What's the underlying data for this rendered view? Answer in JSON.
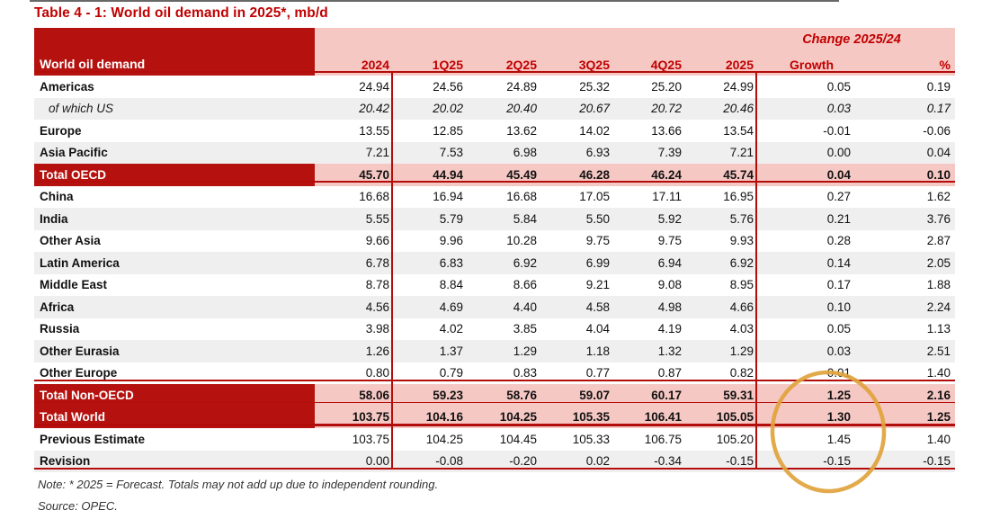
{
  "title": "Table 4 - 1: World oil demand in 2025*, mb/d",
  "table": {
    "first_col_header": "World oil demand",
    "change_header": "Change 2025/24",
    "columns": [
      "2024",
      "1Q25",
      "2Q25",
      "3Q25",
      "4Q25",
      "2025",
      "Growth",
      "%"
    ],
    "rows": [
      {
        "label": "Americas",
        "style": "normal",
        "shaded": false,
        "values": [
          "24.94",
          "24.56",
          "24.89",
          "25.32",
          "25.20",
          "24.99",
          "0.05",
          "0.19"
        ]
      },
      {
        "label": "of which US",
        "style": "subitem",
        "shaded": true,
        "values": [
          "20.42",
          "20.02",
          "20.40",
          "20.67",
          "20.72",
          "20.46",
          "0.03",
          "0.17"
        ]
      },
      {
        "label": "Europe",
        "style": "normal",
        "shaded": false,
        "values": [
          "13.55",
          "12.85",
          "13.62",
          "14.02",
          "13.66",
          "13.54",
          "-0.01",
          "-0.06"
        ]
      },
      {
        "label": "Asia Pacific",
        "style": "normal",
        "shaded": true,
        "values": [
          "7.21",
          "7.53",
          "6.98",
          "6.93",
          "7.39",
          "7.21",
          "0.00",
          "0.04"
        ]
      },
      {
        "label": "Total OECD",
        "style": "total",
        "shaded": false,
        "values": [
          "45.70",
          "44.94",
          "45.49",
          "46.28",
          "46.24",
          "45.74",
          "0.04",
          "0.10"
        ]
      },
      {
        "label": "China",
        "style": "normal",
        "shaded": false,
        "values": [
          "16.68",
          "16.94",
          "16.68",
          "17.05",
          "17.11",
          "16.95",
          "0.27",
          "1.62"
        ]
      },
      {
        "label": "India",
        "style": "normal",
        "shaded": true,
        "values": [
          "5.55",
          "5.79",
          "5.84",
          "5.50",
          "5.92",
          "5.76",
          "0.21",
          "3.76"
        ]
      },
      {
        "label": "Other Asia",
        "style": "normal",
        "shaded": false,
        "values": [
          "9.66",
          "9.96",
          "10.28",
          "9.75",
          "9.75",
          "9.93",
          "0.28",
          "2.87"
        ]
      },
      {
        "label": "Latin America",
        "style": "normal",
        "shaded": true,
        "values": [
          "6.78",
          "6.83",
          "6.92",
          "6.99",
          "6.94",
          "6.92",
          "0.14",
          "2.05"
        ]
      },
      {
        "label": "Middle East",
        "style": "normal",
        "shaded": false,
        "values": [
          "8.78",
          "8.84",
          "8.66",
          "9.21",
          "9.08",
          "8.95",
          "0.17",
          "1.88"
        ]
      },
      {
        "label": "Africa",
        "style": "normal",
        "shaded": true,
        "values": [
          "4.56",
          "4.69",
          "4.40",
          "4.58",
          "4.98",
          "4.66",
          "0.10",
          "2.24"
        ]
      },
      {
        "label": "Russia",
        "style": "normal",
        "shaded": false,
        "values": [
          "3.98",
          "4.02",
          "3.85",
          "4.04",
          "4.19",
          "4.03",
          "0.05",
          "1.13"
        ]
      },
      {
        "label": "Other Eurasia",
        "style": "normal",
        "shaded": true,
        "values": [
          "1.26",
          "1.37",
          "1.29",
          "1.18",
          "1.32",
          "1.29",
          "0.03",
          "2.51"
        ]
      },
      {
        "label": "Other Europe",
        "style": "normal",
        "shaded": false,
        "values": [
          "0.80",
          "0.79",
          "0.83",
          "0.77",
          "0.87",
          "0.82",
          "0.01",
          "1.40"
        ]
      },
      {
        "label": "Total Non-OECD",
        "style": "total",
        "shaded": false,
        "values": [
          "58.06",
          "59.23",
          "58.76",
          "59.07",
          "60.17",
          "59.31",
          "1.25",
          "2.16"
        ]
      },
      {
        "label": "Total World",
        "style": "total",
        "shaded": false,
        "values": [
          "103.75",
          "104.16",
          "104.25",
          "105.35",
          "106.41",
          "105.05",
          "1.30",
          "1.25"
        ]
      },
      {
        "label": "Previous Estimate",
        "style": "normal",
        "shaded": false,
        "values": [
          "103.75",
          "104.25",
          "104.45",
          "105.33",
          "106.75",
          "105.20",
          "1.45",
          "1.40"
        ]
      },
      {
        "label": "Revision",
        "style": "normal",
        "shaded": true,
        "values": [
          "0.00",
          "-0.08",
          "-0.20",
          "0.02",
          "-0.34",
          "-0.15",
          "-0.15",
          "-0.15"
        ]
      }
    ]
  },
  "notes": {
    "note": "Note: * 2025 = Forecast. Totals may not add up due to independent rounding.",
    "source": "Source: OPEC."
  },
  "annotation": {
    "shape": "ellipse",
    "highlights": "Growth column totals (1.25, 1.30, 1.45, -0.15)",
    "color": "#e0a33c"
  },
  "colors": {
    "dark_red_fill": "#b5120f",
    "pink_fill": "#f6c8c4",
    "line_red": "#b30d0b",
    "title_red": "#c00000",
    "zebra_gray": "#efefef",
    "highlight_gold": "#e0a33c"
  }
}
